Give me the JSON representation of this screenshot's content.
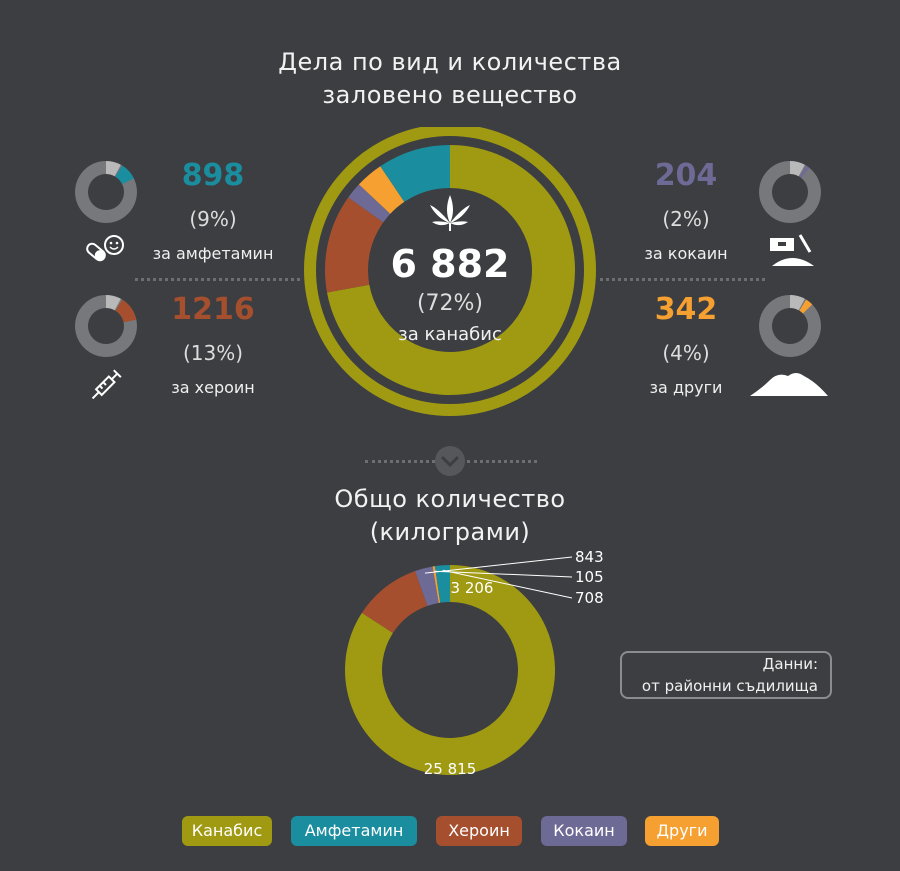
{
  "title_line1": "Дела по вид и количества",
  "title_line2": "заловено вещество",
  "colors": {
    "cannabis": "#a09a12",
    "amphetamine": "#1a8d9f",
    "heroin": "#a54f2f",
    "cocaine": "#6e6a96",
    "other": "#f5a030",
    "ring_grey": "#76787b"
  },
  "center": {
    "value": "6 882",
    "pct": "(72%)",
    "label": "за канабис"
  },
  "stats": {
    "amphetamine": {
      "value": "898",
      "pct": "(9%)",
      "label": "за амфетамин"
    },
    "heroin": {
      "value": "1216",
      "pct": "(13%)",
      "label": "за хероин"
    },
    "cocaine": {
      "value": "204",
      "pct": "(2%)",
      "label": "за кокаин"
    },
    "other": {
      "value": "342",
      "pct": "(4%)",
      "label": "за други"
    }
  },
  "section2_line1": "Общо количество",
  "section2_line2": "(килограми)",
  "note_line1": "Данни:",
  "note_line2": "от районни съдилища",
  "legend": [
    "Канабис",
    "Амфетамин",
    "Хероин",
    "Кокаин",
    "Други"
  ],
  "chart_data": [
    {
      "type": "pie",
      "categories": [
        "Канабис",
        "Хероин",
        "Кокаин",
        "Други",
        "Амфетамин"
      ],
      "values": [
        6882,
        1216,
        204,
        342,
        898
      ],
      "percent": [
        72,
        13,
        2,
        4,
        9
      ],
      "title": "Дела по вид и количества заловено вещество"
    },
    {
      "type": "pie",
      "categories": [
        "Канабис",
        "Хероин",
        "Кокаин",
        "Други",
        "Амфетамин"
      ],
      "values": [
        25815,
        3206,
        843,
        105,
        708
      ],
      "labels": [
        "25 815",
        "3 206",
        "843",
        "105",
        "708"
      ],
      "title": "Общо количество (килограми)"
    }
  ]
}
